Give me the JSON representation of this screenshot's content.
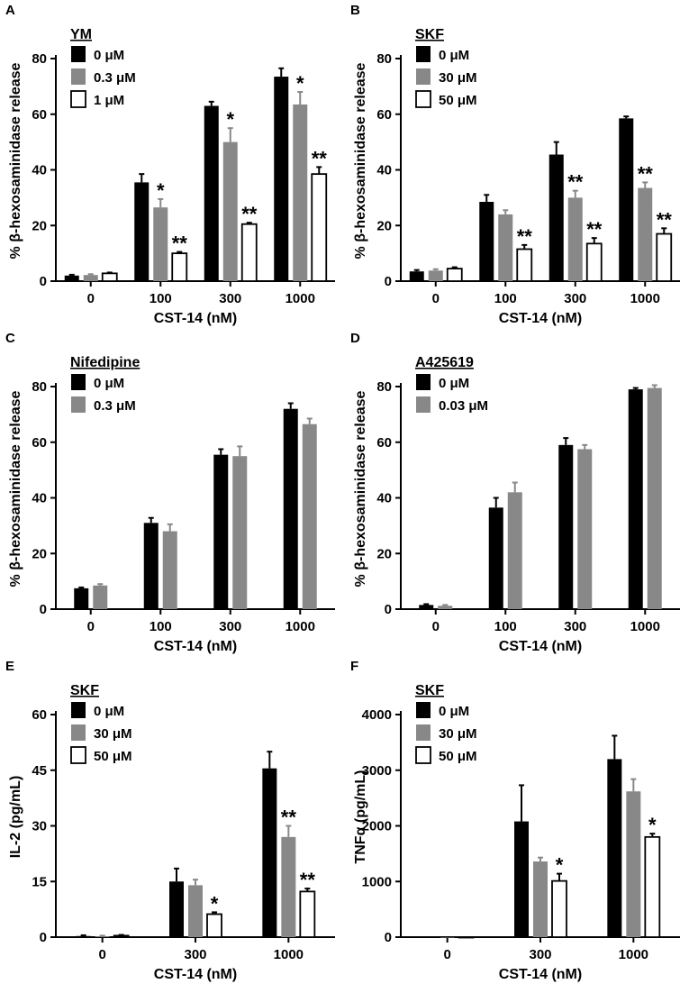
{
  "chart_data": [
    {
      "panel": "A",
      "type": "bar",
      "legend_title": "YM",
      "categories": [
        "0",
        "100",
        "300",
        "1000"
      ],
      "xlabel": "CST-14 (nM)",
      "ylabel": "% β-hexosaminidase release",
      "ylim": [
        0,
        80
      ],
      "yticks": [
        "0",
        "20",
        "40",
        "60",
        "80"
      ],
      "series": [
        {
          "name": "0 μM",
          "color": "#000000",
          "values": [
            2,
            35.5,
            63,
            73.5
          ],
          "errors": [
            0.3,
            3,
            1.5,
            3
          ],
          "sig": [
            "",
            "",
            "",
            ""
          ]
        },
        {
          "name": "0.3 μM",
          "color": "#888888",
          "values": [
            2.2,
            26.5,
            50,
            63.5
          ],
          "errors": [
            0.3,
            3,
            5,
            4.5
          ],
          "sig": [
            "",
            "*",
            "*",
            "*"
          ]
        },
        {
          "name": "1 μM",
          "color": "#ffffff",
          "values": [
            2.8,
            10,
            20.5,
            38.5
          ],
          "errors": [
            0.3,
            0.5,
            0.5,
            2.5
          ],
          "sig": [
            "",
            "**",
            "**",
            "**"
          ]
        }
      ]
    },
    {
      "panel": "B",
      "type": "bar",
      "legend_title": "SKF",
      "categories": [
        "0",
        "100",
        "300",
        "1000"
      ],
      "xlabel": "CST-14 (nM)",
      "ylabel": "% β-hexosaminidase release",
      "ylim": [
        0,
        80
      ],
      "yticks": [
        "0",
        "20",
        "40",
        "60",
        "80"
      ],
      "series": [
        {
          "name": "0 μM",
          "color": "#000000",
          "values": [
            3.5,
            28.5,
            45.5,
            58.5
          ],
          "errors": [
            0.5,
            2.5,
            4.5,
            0.7
          ],
          "sig": [
            "",
            "",
            "",
            ""
          ]
        },
        {
          "name": "30 μM",
          "color": "#888888",
          "values": [
            3.8,
            24,
            30,
            33.5
          ],
          "errors": [
            0.5,
            1.5,
            2.5,
            2
          ],
          "sig": [
            "",
            "",
            "**",
            "**"
          ]
        },
        {
          "name": "50 μM",
          "color": "#ffffff",
          "values": [
            4.5,
            11.5,
            13.5,
            17
          ],
          "errors": [
            0.5,
            1.5,
            2,
            2
          ],
          "sig": [
            "",
            "**",
            "**",
            "**"
          ]
        }
      ]
    },
    {
      "panel": "C",
      "type": "bar",
      "legend_title": "Nifedipine",
      "categories": [
        "0",
        "100",
        "300",
        "1000"
      ],
      "xlabel": "CST-14 (nM)",
      "ylabel": "% β-hexosaminidase release",
      "ylim": [
        0,
        80
      ],
      "yticks": [
        "0",
        "20",
        "40",
        "60",
        "80"
      ],
      "series": [
        {
          "name": "0 μM",
          "color": "#000000",
          "values": [
            7.5,
            31,
            55.5,
            72
          ],
          "errors": [
            0.3,
            1.8,
            2,
            2
          ],
          "sig": [
            "",
            "",
            "",
            ""
          ]
        },
        {
          "name": "0.3 μM",
          "color": "#888888",
          "values": [
            8.5,
            28,
            55,
            66.5
          ],
          "errors": [
            0.5,
            2.5,
            3.5,
            2
          ],
          "sig": [
            "",
            "",
            "",
            ""
          ]
        }
      ]
    },
    {
      "panel": "D",
      "type": "bar",
      "legend_title": "A425619",
      "categories": [
        "0",
        "100",
        "300",
        "1000"
      ],
      "xlabel": "CST-14 (nM)",
      "ylabel": "% β-hexosaminidase release",
      "ylim": [
        0,
        80
      ],
      "yticks": [
        "0",
        "20",
        "40",
        "60",
        "80"
      ],
      "series": [
        {
          "name": "0 μM",
          "color": "#000000",
          "values": [
            1.5,
            36.5,
            59,
            79
          ],
          "errors": [
            0.3,
            3.5,
            2.5,
            0.5
          ],
          "sig": [
            "",
            "",
            "",
            ""
          ]
        },
        {
          "name": "0.03 μM",
          "color": "#888888",
          "values": [
            1.2,
            42,
            57.5,
            79.5
          ],
          "errors": [
            0.3,
            3.5,
            1.5,
            1
          ],
          "sig": [
            "",
            "",
            "",
            ""
          ]
        }
      ]
    },
    {
      "panel": "E",
      "type": "bar",
      "legend_title": "SKF",
      "categories": [
        "0",
        "300",
        "1000"
      ],
      "xlabel": "CST-14 (nM)",
      "ylabel": "IL-2 (pg/mL)",
      "ylim": [
        0,
        60
      ],
      "yticks": [
        "0",
        "15",
        "30",
        "45",
        "60"
      ],
      "series": [
        {
          "name": "0 μM",
          "color": "#000000",
          "values": [
            0.3,
            15,
            45.5
          ],
          "errors": [
            0.2,
            3.5,
            4.5
          ],
          "sig": [
            "",
            "",
            ""
          ]
        },
        {
          "name": "30 μM",
          "color": "#888888",
          "values": [
            0.2,
            14,
            27
          ],
          "errors": [
            0.2,
            1.5,
            3
          ],
          "sig": [
            "",
            "",
            "**"
          ]
        },
        {
          "name": "50 μM",
          "color": "#ffffff",
          "values": [
            0.4,
            6.2,
            12.3
          ],
          "errors": [
            0.2,
            0.5,
            0.8
          ],
          "sig": [
            "",
            "*",
            "**"
          ]
        }
      ]
    },
    {
      "panel": "F",
      "type": "bar",
      "legend_title": "SKF",
      "categories": [
        "0",
        "300",
        "1000"
      ],
      "xlabel": "CST-14 (nM)",
      "ylabel": "TNFα (pg/mL)",
      "ylim": [
        0,
        4000
      ],
      "yticks": [
        "0",
        "1000",
        "2000",
        "3000",
        "4000"
      ],
      "series": [
        {
          "name": "0 μM",
          "color": "#000000",
          "values": [
            0,
            2080,
            3200
          ],
          "errors": [
            0,
            650,
            420
          ],
          "sig": [
            "",
            "",
            ""
          ]
        },
        {
          "name": "30 μM",
          "color": "#888888",
          "values": [
            0,
            1360,
            2620
          ],
          "errors": [
            0,
            70,
            220
          ],
          "sig": [
            "",
            "",
            ""
          ]
        },
        {
          "name": "50 μM",
          "color": "#ffffff",
          "values": [
            0,
            1010,
            1800
          ],
          "errors": [
            0,
            130,
            60
          ],
          "sig": [
            "",
            "*",
            "*"
          ]
        }
      ]
    }
  ]
}
